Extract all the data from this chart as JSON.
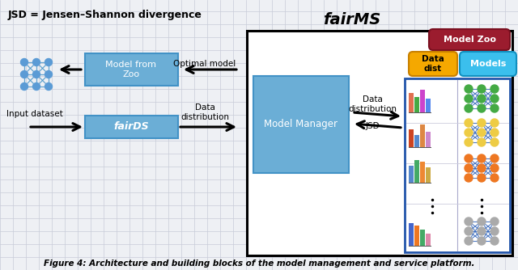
{
  "title_label": "JSD = Jensen–Shannon divergence",
  "fairms_title": "fairMS",
  "caption": "Figure 4: Architecture and building blocks of the model management and service platform.",
  "bg_color": "#eef0f4",
  "grid_color": "#c8ccd8",
  "blue_box_color": "#6baed6",
  "blue_box_edge": "#4292c6",
  "model_zoo_color": "#9b1c2e",
  "data_dist_color": "#f5a800",
  "models_color": "#3bbfed",
  "fairms_box_bg": "#ffffff"
}
